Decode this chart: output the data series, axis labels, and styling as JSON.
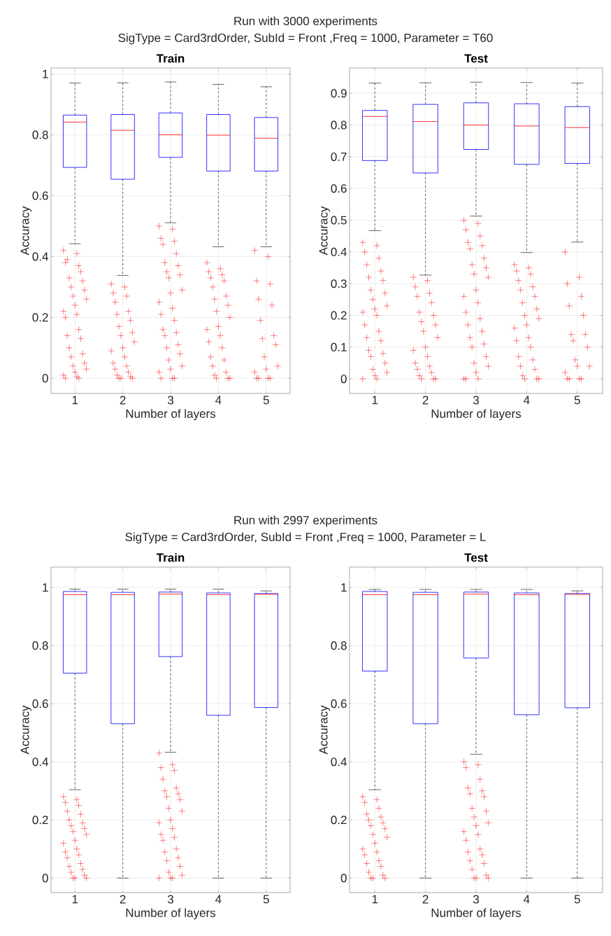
{
  "chart_data": [
    {
      "type": "box",
      "title": "Train",
      "xlabel": "Number of layers",
      "ylabel": "Accuracy",
      "categories": [
        "1",
        "2",
        "3",
        "4",
        "5"
      ],
      "ylim": [
        -0.05,
        1.02
      ],
      "yticks": [
        0,
        0.2,
        0.4,
        0.6,
        0.8,
        1
      ],
      "grid": true,
      "annotations": [
        "Run with 3000 experiments",
        "SigType = Card3rdOrder, SubId = Front ,Freq = 1000, Parameter = T60"
      ],
      "series": [
        {
          "color": "#0000ff",
          "boxes": [
            {
              "low": 0.442,
              "q1": 0.693,
              "median": 0.842,
              "q3": 0.865,
              "high": 0.97,
              "outliers": [
                0.42,
                0.41,
                0.38,
                0.37,
                0.39,
                0.35,
                0.33,
                0.32,
                0.3,
                0.29,
                0.27,
                0.26,
                0.24,
                0.22,
                0.21,
                0.2,
                0.16,
                0.14,
                0.13,
                0.1,
                0.08,
                0.07,
                0.05,
                0.04,
                0.03,
                0.02,
                0.01,
                0.005,
                0,
                0
              ]
            },
            {
              "low": 0.338,
              "q1": 0.654,
              "median": 0.815,
              "q3": 0.867,
              "high": 0.971,
              "outliers": [
                0.31,
                0.3,
                0.28,
                0.27,
                0.25,
                0.22,
                0.21,
                0.19,
                0.17,
                0.15,
                0.14,
                0.12,
                0.1,
                0.09,
                0.07,
                0.05,
                0.04,
                0.03,
                0.02,
                0.01,
                0.005,
                0,
                0,
                0
              ]
            },
            {
              "low": 0.511,
              "q1": 0.726,
              "median": 0.8,
              "q3": 0.872,
              "high": 0.974,
              "outliers": [
                0.5,
                0.49,
                0.46,
                0.45,
                0.44,
                0.41,
                0.38,
                0.37,
                0.35,
                0.34,
                0.33,
                0.29,
                0.28,
                0.25,
                0.23,
                0.21,
                0.19,
                0.16,
                0.15,
                0.14,
                0.11,
                0.1,
                0.08,
                0.06,
                0.04,
                0.03,
                0.02,
                0,
                0,
                0
              ]
            },
            {
              "low": 0.432,
              "q1": 0.681,
              "median": 0.799,
              "q3": 0.867,
              "high": 0.966,
              "outliers": [
                0.38,
                0.36,
                0.35,
                0.34,
                0.33,
                0.32,
                0.3,
                0.27,
                0.26,
                0.24,
                0.22,
                0.2,
                0.17,
                0.16,
                0.14,
                0.12,
                0.1,
                0.07,
                0.06,
                0.04,
                0.02,
                0.01,
                0,
                0,
                0
              ]
            },
            {
              "low": 0.432,
              "q1": 0.681,
              "median": 0.789,
              "q3": 0.857,
              "high": 0.958,
              "outliers": [
                0.42,
                0.4,
                0.32,
                0.31,
                0.26,
                0.24,
                0.19,
                0.14,
                0.13,
                0.11,
                0.07,
                0.04,
                0.03,
                0.02,
                0,
                0,
                0,
                0
              ]
            }
          ]
        }
      ]
    },
    {
      "type": "box",
      "title": "Test",
      "xlabel": "Number of layers",
      "ylabel": "Accuracy",
      "categories": [
        "1",
        "2",
        "3",
        "4",
        "5"
      ],
      "ylim": [
        -0.046,
        0.98
      ],
      "yticks": [
        0,
        0.1,
        0.2,
        0.3,
        0.4,
        0.5,
        0.6,
        0.7,
        0.8,
        0.9
      ],
      "grid": true,
      "series": [
        {
          "color": "#0000ff",
          "boxes": [
            {
              "low": 0.467,
              "q1": 0.688,
              "median": 0.827,
              "q3": 0.846,
              "high": 0.932,
              "outliers": [
                0.43,
                0.42,
                0.4,
                0.38,
                0.36,
                0.34,
                0.32,
                0.31,
                0.28,
                0.27,
                0.25,
                0.23,
                0.22,
                0.21,
                0.2,
                0.17,
                0.15,
                0.13,
                0.12,
                0.09,
                0.08,
                0.07,
                0.05,
                0.03,
                0.02,
                0.01,
                0,
                0
              ]
            },
            {
              "low": 0.327,
              "q1": 0.649,
              "median": 0.811,
              "q3": 0.865,
              "high": 0.933,
              "outliers": [
                0.32,
                0.31,
                0.29,
                0.27,
                0.26,
                0.24,
                0.21,
                0.2,
                0.18,
                0.17,
                0.15,
                0.13,
                0.1,
                0.09,
                0.07,
                0.05,
                0.04,
                0.03,
                0.02,
                0.01,
                0,
                0,
                0
              ]
            },
            {
              "low": 0.513,
              "q1": 0.723,
              "median": 0.8,
              "q3": 0.87,
              "high": 0.935,
              "outliers": [
                0.5,
                0.49,
                0.47,
                0.45,
                0.43,
                0.42,
                0.41,
                0.38,
                0.36,
                0.35,
                0.33,
                0.32,
                0.28,
                0.26,
                0.24,
                0.21,
                0.19,
                0.17,
                0.15,
                0.13,
                0.11,
                0.1,
                0.07,
                0.05,
                0.04,
                0.02,
                0,
                0,
                0
              ]
            },
            {
              "low": 0.398,
              "q1": 0.676,
              "median": 0.797,
              "q3": 0.867,
              "high": 0.934,
              "outliers": [
                0.36,
                0.35,
                0.34,
                0.33,
                0.31,
                0.29,
                0.28,
                0.26,
                0.24,
                0.22,
                0.2,
                0.19,
                0.17,
                0.16,
                0.13,
                0.12,
                0.1,
                0.07,
                0.06,
                0.04,
                0.03,
                0.01,
                0,
                0,
                0
              ]
            },
            {
              "low": 0.431,
              "q1": 0.679,
              "median": 0.792,
              "q3": 0.858,
              "high": 0.932,
              "outliers": [
                0.4,
                0.32,
                0.3,
                0.26,
                0.23,
                0.2,
                0.14,
                0.14,
                0.12,
                0.1,
                0.06,
                0.04,
                0.04,
                0.02,
                0,
                0,
                0,
                0
              ]
            }
          ]
        }
      ]
    },
    {
      "type": "box",
      "title": "Train",
      "xlabel": "Number of layers",
      "ylabel": "Accuracy",
      "categories": [
        "1",
        "2",
        "3",
        "4",
        "5"
      ],
      "ylim": [
        -0.05,
        1.07
      ],
      "yticks": [
        0,
        0.2,
        0.4,
        0.6,
        0.8,
        1
      ],
      "grid": true,
      "annotations": [
        "Run with 2997 experiments",
        "SigType = Card3rdOrder, SubId = Front ,Freq = 1000, Parameter = L"
      ],
      "series": [
        {
          "color": "#0000ff",
          "boxes": [
            {
              "low": 0.304,
              "q1": 0.705,
              "median": 0.975,
              "q3": 0.986,
              "high": 0.994,
              "outliers": [
                0.28,
                0.27,
                0.26,
                0.25,
                0.23,
                0.22,
                0.2,
                0.19,
                0.18,
                0.17,
                0.16,
                0.15,
                0.13,
                0.12,
                0.1,
                0.09,
                0.08,
                0.07,
                0.05,
                0.04,
                0.03,
                0.02,
                0.01,
                0,
                0,
                0
              ]
            },
            {
              "low": 0,
              "q1": 0.531,
              "median": 0.975,
              "q3": 0.983,
              "high": 0.994
            },
            {
              "low": 0.433,
              "q1": 0.762,
              "median": 0.977,
              "q3": 0.984,
              "high": 0.994,
              "outliers": [
                0.43,
                0.39,
                0.38,
                0.37,
                0.34,
                0.31,
                0.3,
                0.29,
                0.28,
                0.27,
                0.24,
                0.23,
                0.2,
                0.19,
                0.17,
                0.15,
                0.14,
                0.13,
                0.1,
                0.09,
                0.07,
                0.06,
                0.04,
                0.02,
                0.01,
                0,
                0,
                0
              ]
            },
            {
              "low": 0,
              "q1": 0.56,
              "median": 0.975,
              "q3": 0.981,
              "high": 0.994
            },
            {
              "low": 0,
              "q1": 0.587,
              "median": 0.976,
              "q3": 0.979,
              "high": 0.988
            }
          ]
        }
      ]
    },
    {
      "type": "box",
      "title": "Test",
      "xlabel": "Number of layers",
      "ylabel": "Accuracy",
      "categories": [
        "1",
        "2",
        "3",
        "4",
        "5"
      ],
      "ylim": [
        -0.05,
        1.07
      ],
      "yticks": [
        0,
        0.2,
        0.4,
        0.6,
        0.8,
        1
      ],
      "grid": true,
      "series": [
        {
          "color": "#0000ff",
          "boxes": [
            {
              "low": 0.304,
              "q1": 0.712,
              "median": 0.975,
              "q3": 0.986,
              "high": 0.993,
              "outliers": [
                0.28,
                0.27,
                0.26,
                0.24,
                0.22,
                0.21,
                0.2,
                0.19,
                0.18,
                0.17,
                0.15,
                0.14,
                0.12,
                0.1,
                0.09,
                0.08,
                0.06,
                0.05,
                0.04,
                0.02,
                0.01,
                0,
                0,
                0
              ]
            },
            {
              "low": 0,
              "q1": 0.531,
              "median": 0.975,
              "q3": 0.983,
              "high": 0.993
            },
            {
              "low": 0.426,
              "q1": 0.757,
              "median": 0.977,
              "q3": 0.984,
              "high": 0.993,
              "outliers": [
                0.4,
                0.39,
                0.38,
                0.34,
                0.31,
                0.3,
                0.29,
                0.28,
                0.24,
                0.23,
                0.21,
                0.19,
                0.18,
                0.16,
                0.15,
                0.13,
                0.1,
                0.09,
                0.08,
                0.06,
                0.05,
                0.03,
                0.01,
                0,
                0,
                0
              ]
            },
            {
              "low": 0,
              "q1": 0.562,
              "median": 0.975,
              "q3": 0.981,
              "high": 0.993
            },
            {
              "low": 0,
              "q1": 0.586,
              "median": 0.976,
              "q3": 0.979,
              "high": 0.988
            }
          ]
        }
      ]
    }
  ]
}
